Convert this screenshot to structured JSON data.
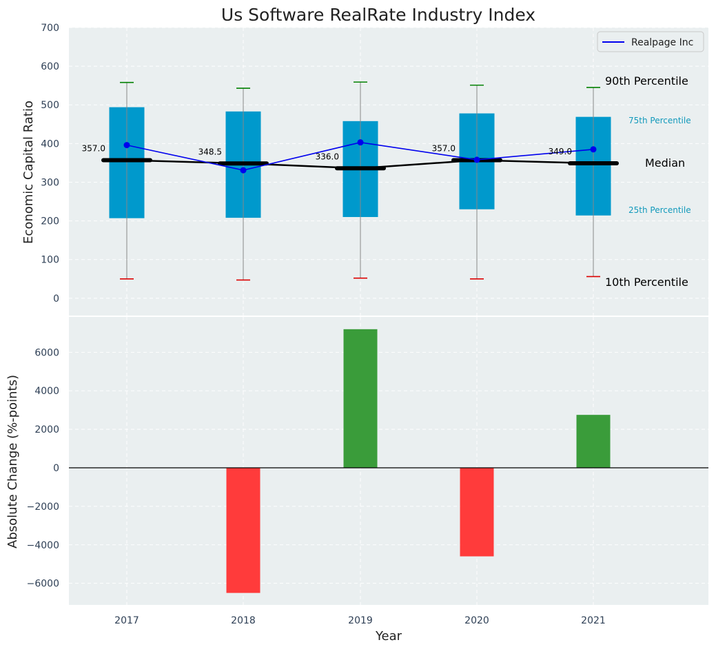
{
  "chart_data": [
    {
      "type": "box",
      "title": "Us Software RealRate Industry Index",
      "ylabel": "Economic Capital Ratio",
      "ylim": [
        -50,
        700
      ],
      "yticks": [
        0,
        100,
        200,
        300,
        400,
        500,
        600,
        700
      ],
      "grid": true,
      "categories": [
        "2017",
        "2018",
        "2019",
        "2020",
        "2021"
      ],
      "percentiles": {
        "p10": [
          50,
          47,
          52,
          50,
          56
        ],
        "p25": [
          207,
          208,
          210,
          230,
          214
        ],
        "median": [
          357.0,
          348.5,
          336.0,
          357.0,
          349.0
        ],
        "p75": [
          494,
          483,
          458,
          478,
          469
        ],
        "p90": [
          558,
          543,
          559,
          551,
          545
        ]
      },
      "median_labels": [
        "357.0",
        "348.5",
        "336.0",
        "357.0",
        "349.0"
      ],
      "series": [
        {
          "name": "Realpage Inc",
          "values": [
            396,
            331,
            403,
            358,
            385
          ],
          "color": "#0000ee"
        }
      ],
      "legend": {
        "position": "top-right",
        "entries": [
          "Realpage Inc"
        ]
      },
      "annotations": {
        "p90": "90th Percentile",
        "p75": "75th Percentile",
        "median": "Median",
        "p25": "25th Percentile",
        "p10": "10th Percentile"
      },
      "colors": {
        "box": "#0099cc",
        "median_line": "#000000",
        "whisker": "#888888",
        "p90_cap": "#008000",
        "p10_cap": "#dd0000",
        "background": "#eaeff0"
      }
    },
    {
      "type": "bar",
      "xlabel": "Year",
      "ylabel": "Absolute Change (%-points)",
      "ylim": [
        -7100,
        7300
      ],
      "yticks": [
        -6000,
        -4000,
        -2000,
        0,
        2000,
        4000,
        6000
      ],
      "grid": true,
      "categories": [
        "2017",
        "2018",
        "2019",
        "2020",
        "2021"
      ],
      "values": [
        null,
        -6500,
        7200,
        -4600,
        2750
      ],
      "colors": {
        "positive": "#3a9c3a",
        "negative": "#ff3b3b"
      }
    }
  ]
}
